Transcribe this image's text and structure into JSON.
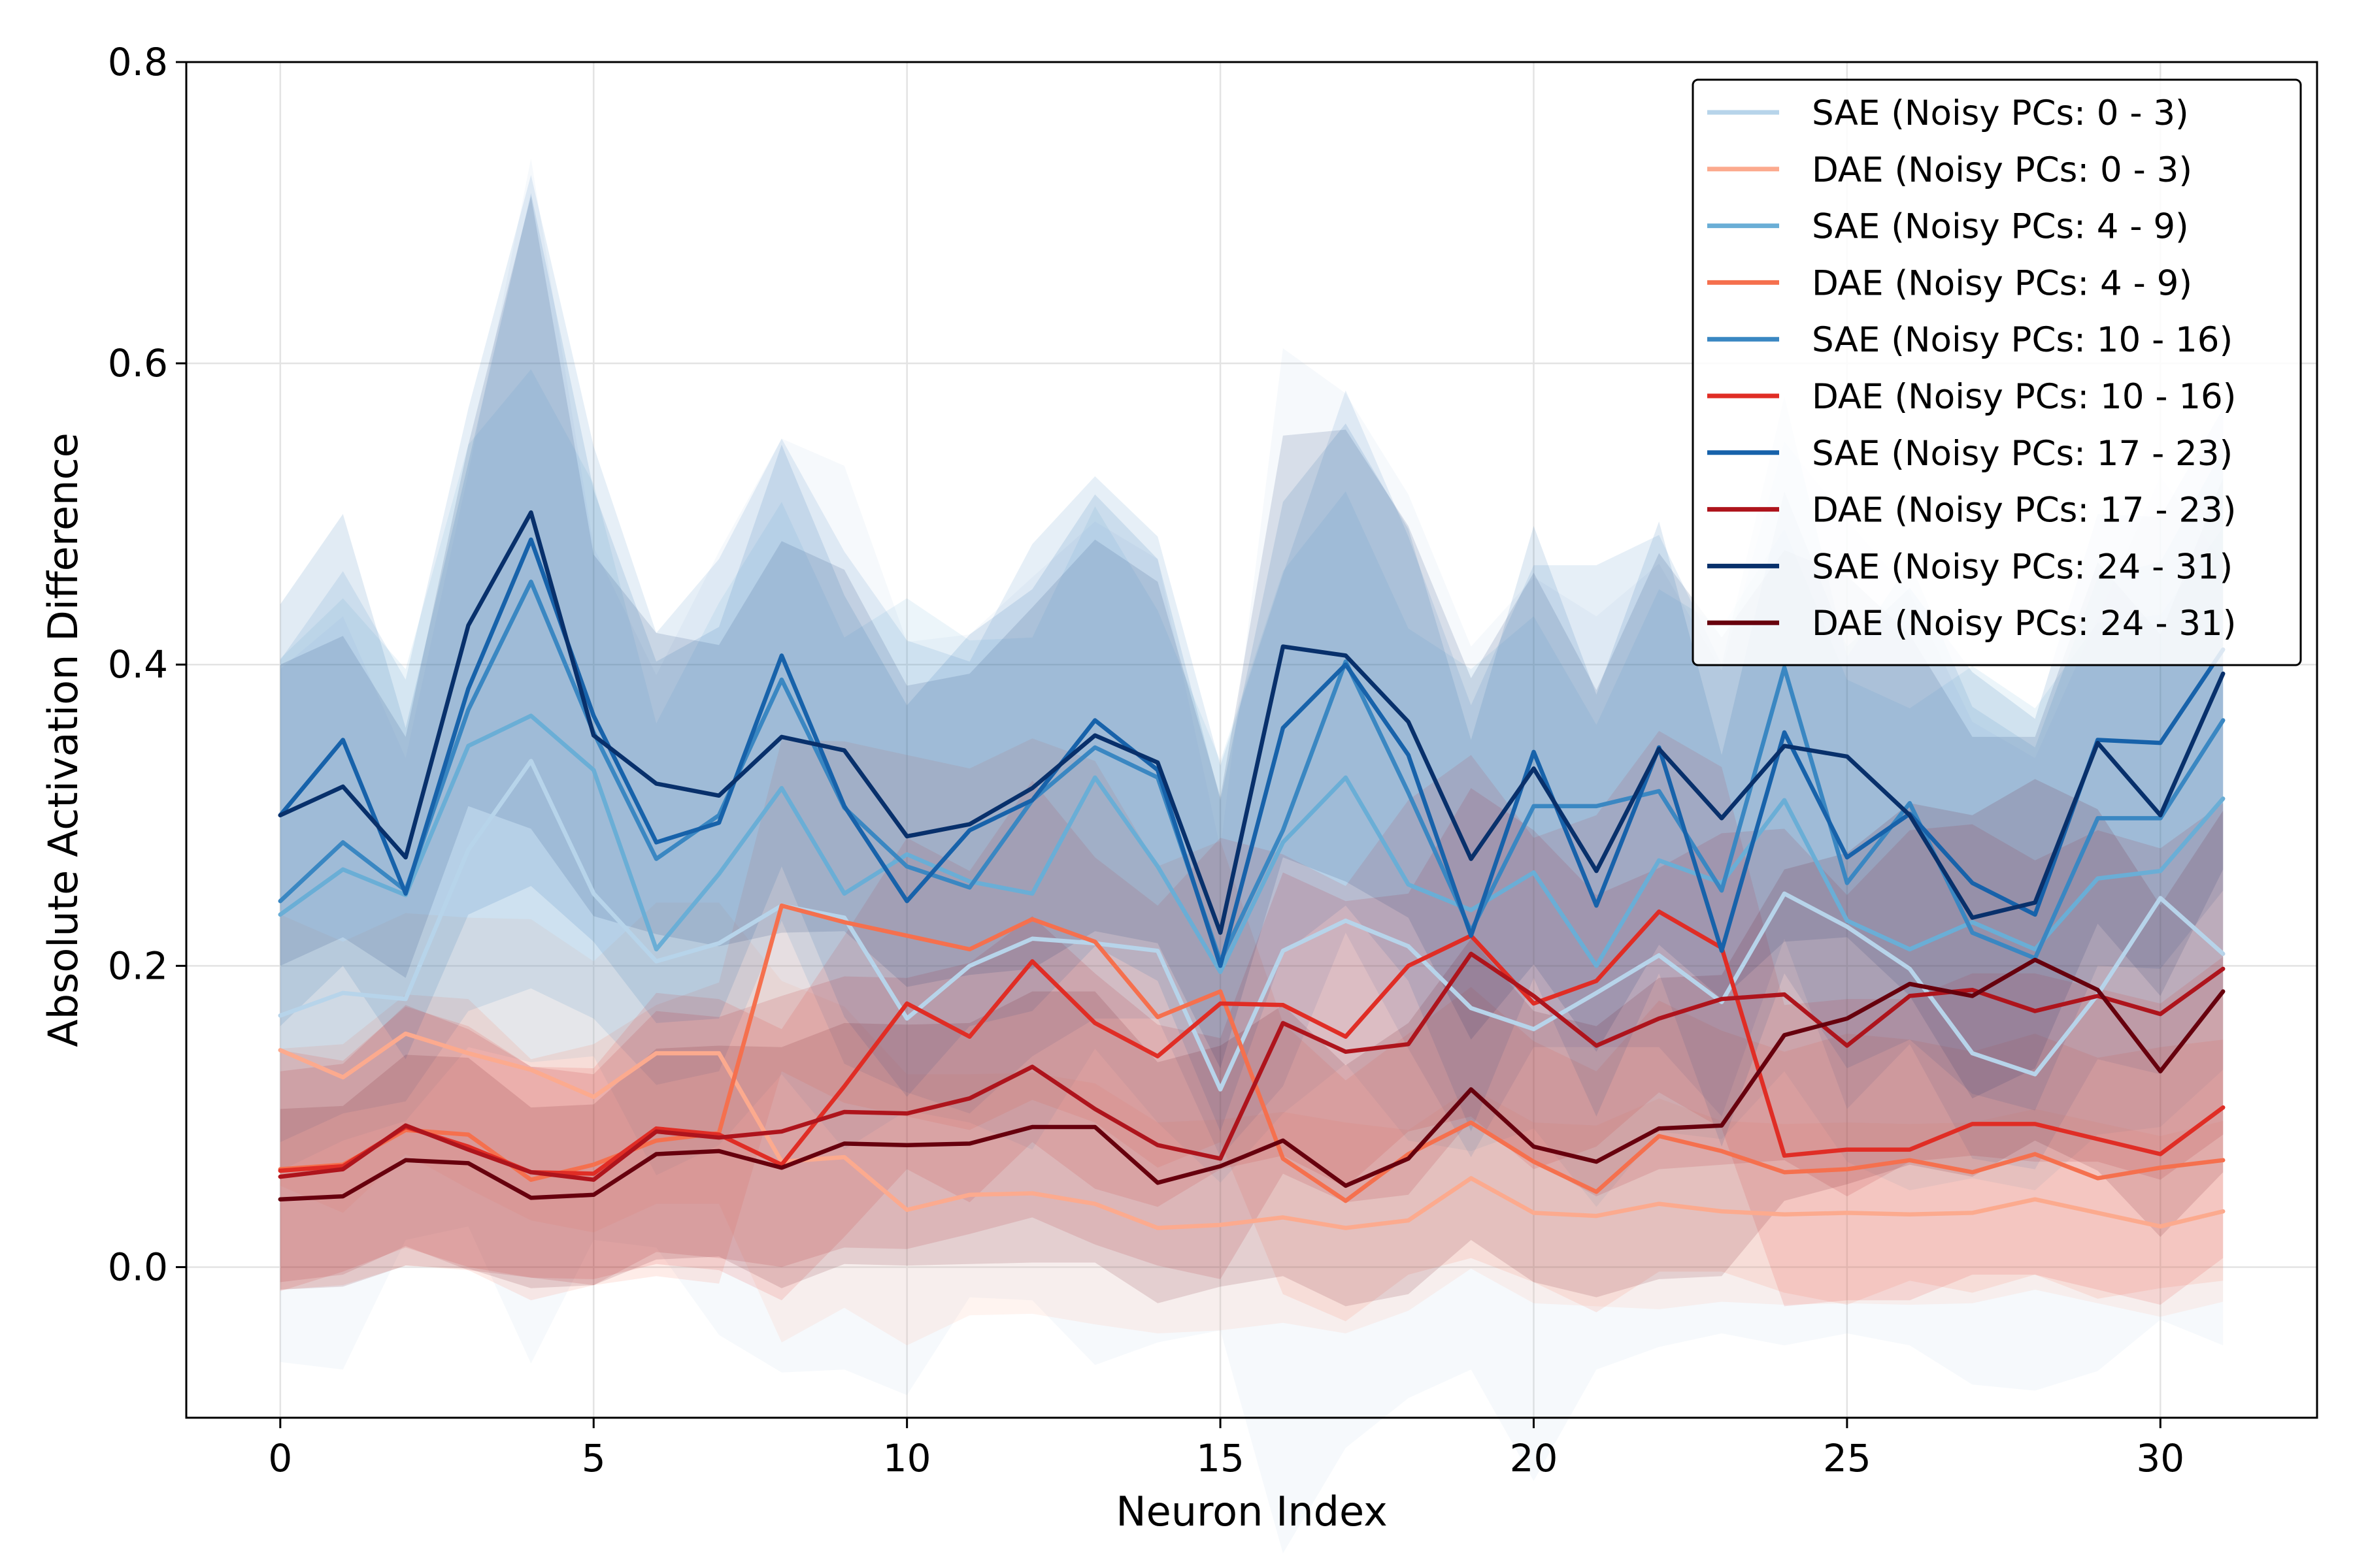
{
  "chart_data": {
    "type": "line",
    "xlabel": "Neuron Index",
    "ylabel": "Absolute Activation Difference",
    "xlim": [
      -1.5,
      32.5
    ],
    "ylim": [
      -0.1,
      0.8
    ],
    "xticks": [
      0,
      5,
      10,
      15,
      20,
      25,
      30
    ],
    "yticks": [
      0.0,
      0.2,
      0.4,
      0.6,
      0.8
    ],
    "ytick_labels": [
      "0.0",
      "0.2",
      "0.4",
      "0.6",
      "0.8"
    ],
    "grid": true,
    "legend_position": "top-right",
    "band_alpha": 0.13,
    "x": [
      0,
      1,
      2,
      3,
      4,
      5,
      6,
      7,
      8,
      9,
      10,
      11,
      12,
      13,
      14,
      15,
      16,
      17,
      18,
      19,
      20,
      21,
      22,
      23,
      24,
      25,
      26,
      27,
      28,
      29,
      30,
      31
    ],
    "series": [
      {
        "name": "SAE (Noisy PCs: 0 - 3)",
        "color": "#b7d4ea",
        "values": [
          0.167,
          0.182,
          0.178,
          0.277,
          0.336,
          0.248,
          0.203,
          0.215,
          0.24,
          0.232,
          0.165,
          0.2,
          0.218,
          0.215,
          0.21,
          0.118,
          0.21,
          0.23,
          0.213,
          0.172,
          0.158,
          0.182,
          0.207,
          0.176,
          0.248,
          0.226,
          0.198,
          0.142,
          0.128,
          0.181,
          0.245,
          0.208
        ],
        "spread": [
          0.23,
          0.25,
          0.16,
          0.25,
          0.4,
          0.23,
          0.19,
          0.26,
          0.31,
          0.3,
          0.25,
          0.22,
          0.24,
          0.28,
          0.26,
          0.16,
          0.4,
          0.35,
          0.3,
          0.24,
          0.3,
          0.25,
          0.26,
          0.22,
          0.3,
          0.27,
          0.25,
          0.22,
          0.21,
          0.25,
          0.28,
          0.26
        ]
      },
      {
        "name": "DAE (Noisy PCs: 0 - 3)",
        "color": "#fcaa8e",
        "values": [
          0.144,
          0.126,
          0.155,
          0.142,
          0.131,
          0.113,
          0.142,
          0.142,
          0.07,
          0.073,
          0.038,
          0.048,
          0.049,
          0.042,
          0.026,
          0.028,
          0.033,
          0.026,
          0.031,
          0.059,
          0.036,
          0.034,
          0.042,
          0.037,
          0.035,
          0.036,
          0.035,
          0.036,
          0.045,
          0.036,
          0.027,
          0.037
        ],
        "spread": [
          0.09,
          0.09,
          0.08,
          0.09,
          0.1,
          0.09,
          0.1,
          0.1,
          0.12,
          0.1,
          0.09,
          0.08,
          0.08,
          0.08,
          0.07,
          0.07,
          0.07,
          0.07,
          0.06,
          0.06,
          0.06,
          0.06,
          0.07,
          0.06,
          0.06,
          0.06,
          0.06,
          0.06,
          0.06,
          0.06,
          0.06,
          0.06
        ]
      },
      {
        "name": "SAE (Noisy PCs: 4 - 9)",
        "color": "#6aaed6",
        "values": [
          0.234,
          0.264,
          0.247,
          0.346,
          0.366,
          0.33,
          0.211,
          0.261,
          0.318,
          0.248,
          0.274,
          0.256,
          0.248,
          0.325,
          0.266,
          0.196,
          0.282,
          0.325,
          0.254,
          0.237,
          0.262,
          0.2,
          0.27,
          0.255,
          0.31,
          0.23,
          0.211,
          0.229,
          0.211,
          0.258,
          0.263,
          0.311
        ],
        "spread": [
          0.17,
          0.18,
          0.15,
          0.2,
          0.23,
          0.19,
          0.15,
          0.18,
          0.19,
          0.17,
          0.17,
          0.16,
          0.17,
          0.18,
          0.17,
          0.14,
          0.18,
          0.19,
          0.17,
          0.16,
          0.17,
          0.16,
          0.18,
          0.17,
          0.18,
          0.16,
          0.16,
          0.17,
          0.16,
          0.17,
          0.17,
          0.18
        ]
      },
      {
        "name": "DAE (Noisy PCs: 4 - 9)",
        "color": "#f5704e",
        "values": [
          0.065,
          0.068,
          0.091,
          0.088,
          0.058,
          0.068,
          0.084,
          0.089,
          0.24,
          0.229,
          0.22,
          0.211,
          0.231,
          0.216,
          0.166,
          0.183,
          0.072,
          0.044,
          0.075,
          0.096,
          0.07,
          0.05,
          0.087,
          0.077,
          0.063,
          0.065,
          0.071,
          0.063,
          0.075,
          0.059,
          0.066,
          0.071
        ],
        "spread": [
          0.08,
          0.08,
          0.09,
          0.09,
          0.08,
          0.08,
          0.09,
          0.1,
          0.11,
          0.12,
          0.12,
          0.12,
          0.12,
          0.12,
          0.1,
          0.1,
          0.09,
          0.08,
          0.08,
          0.09,
          0.08,
          0.08,
          0.09,
          0.08,
          0.08,
          0.09,
          0.08,
          0.08,
          0.08,
          0.08,
          0.08,
          0.08
        ]
      },
      {
        "name": "SAE (Noisy PCs: 10 - 16)",
        "color": "#3a87c2",
        "values": [
          0.243,
          0.282,
          0.25,
          0.37,
          0.455,
          0.355,
          0.271,
          0.3,
          0.39,
          0.305,
          0.266,
          0.252,
          0.31,
          0.345,
          0.325,
          0.203,
          0.29,
          0.402,
          0.315,
          0.223,
          0.306,
          0.306,
          0.316,
          0.25,
          0.398,
          0.255,
          0.308,
          0.222,
          0.205,
          0.298,
          0.298,
          0.363
        ],
        "spread": [
          0.16,
          0.18,
          0.14,
          0.2,
          0.27,
          0.19,
          0.15,
          0.17,
          0.16,
          0.17,
          0.15,
          0.15,
          0.17,
          0.18,
          0.16,
          0.13,
          0.17,
          0.18,
          0.17,
          0.15,
          0.16,
          0.16,
          0.17,
          0.15,
          0.18,
          0.15,
          0.16,
          0.15,
          0.14,
          0.16,
          0.17,
          0.18
        ]
      },
      {
        "name": "DAE (Noisy PCs: 10 - 16)",
        "color": "#e02d25",
        "values": [
          0.064,
          0.067,
          0.093,
          0.08,
          0.063,
          0.062,
          0.092,
          0.088,
          0.068,
          0.12,
          0.175,
          0.153,
          0.203,
          0.162,
          0.14,
          0.175,
          0.174,
          0.153,
          0.2,
          0.22,
          0.175,
          0.19,
          0.236,
          0.212,
          0.074,
          0.078,
          0.078,
          0.095,
          0.095,
          0.085,
          0.075,
          0.106
        ],
        "spread": [
          0.08,
          0.07,
          0.08,
          0.08,
          0.07,
          0.07,
          0.09,
          0.09,
          0.09,
          0.1,
          0.11,
          0.11,
          0.12,
          0.11,
          0.1,
          0.11,
          0.1,
          0.1,
          0.11,
          0.12,
          0.11,
          0.11,
          0.12,
          0.12,
          0.1,
          0.1,
          0.1,
          0.1,
          0.1,
          0.1,
          0.1,
          0.1
        ]
      },
      {
        "name": "SAE (Noisy PCs: 17 - 23)",
        "color": "#1762aa",
        "values": [
          0.3,
          0.35,
          0.248,
          0.384,
          0.483,
          0.366,
          0.282,
          0.295,
          0.406,
          0.306,
          0.243,
          0.29,
          0.31,
          0.363,
          0.33,
          0.2,
          0.358,
          0.4,
          0.34,
          0.22,
          0.342,
          0.24,
          0.345,
          0.21,
          0.355,
          0.272,
          0.301,
          0.255,
          0.234,
          0.35,
          0.348,
          0.41
        ],
        "spread": [
          0.14,
          0.15,
          0.11,
          0.15,
          0.23,
          0.15,
          0.12,
          0.13,
          0.14,
          0.14,
          0.13,
          0.13,
          0.14,
          0.15,
          0.14,
          0.11,
          0.15,
          0.16,
          0.15,
          0.13,
          0.15,
          0.14,
          0.15,
          0.13,
          0.16,
          0.14,
          0.15,
          0.14,
          0.13,
          0.15,
          0.15,
          0.16
        ]
      },
      {
        "name": "DAE (Noisy PCs: 17 - 23)",
        "color": "#ae141c",
        "values": [
          0.06,
          0.065,
          0.094,
          0.078,
          0.063,
          0.058,
          0.09,
          0.086,
          0.09,
          0.103,
          0.102,
          0.112,
          0.133,
          0.105,
          0.081,
          0.072,
          0.162,
          0.143,
          0.148,
          0.208,
          0.18,
          0.147,
          0.165,
          0.178,
          0.181,
          0.147,
          0.18,
          0.184,
          0.17,
          0.18,
          0.168,
          0.198
        ],
        "spread": [
          0.07,
          0.07,
          0.08,
          0.08,
          0.07,
          0.07,
          0.08,
          0.08,
          0.09,
          0.09,
          0.09,
          0.09,
          0.1,
          0.09,
          0.08,
          0.08,
          0.1,
          0.1,
          0.1,
          0.11,
          0.11,
          0.1,
          0.1,
          0.11,
          0.11,
          0.1,
          0.11,
          0.11,
          0.1,
          0.11,
          0.11,
          0.11
        ]
      },
      {
        "name": "SAE (Noisy PCs: 24 - 31)",
        "color": "#08306b",
        "values": [
          0.3,
          0.319,
          0.272,
          0.426,
          0.501,
          0.353,
          0.321,
          0.313,
          0.352,
          0.343,
          0.286,
          0.294,
          0.318,
          0.353,
          0.335,
          0.222,
          0.412,
          0.406,
          0.362,
          0.271,
          0.331,
          0.263,
          0.344,
          0.298,
          0.346,
          0.339,
          0.3,
          0.232,
          0.242,
          0.348,
          0.3,
          0.394
        ],
        "spread": [
          0.1,
          0.1,
          0.08,
          0.12,
          0.21,
          0.12,
          0.1,
          0.1,
          0.13,
          0.12,
          0.1,
          0.1,
          0.12,
          0.13,
          0.12,
          0.09,
          0.14,
          0.15,
          0.13,
          0.12,
          0.13,
          0.12,
          0.13,
          0.12,
          0.13,
          0.12,
          0.12,
          0.12,
          0.11,
          0.12,
          0.12,
          0.13
        ]
      },
      {
        "name": "DAE (Noisy PCs: 24 - 31)",
        "color": "#67000d",
        "values": [
          0.045,
          0.047,
          0.071,
          0.069,
          0.046,
          0.048,
          0.075,
          0.077,
          0.066,
          0.082,
          0.081,
          0.082,
          0.093,
          0.093,
          0.056,
          0.067,
          0.084,
          0.054,
          0.072,
          0.118,
          0.08,
          0.07,
          0.092,
          0.094,
          0.154,
          0.165,
          0.188,
          0.18,
          0.204,
          0.184,
          0.13,
          0.183
        ],
        "spread": [
          0.06,
          0.06,
          0.07,
          0.07,
          0.06,
          0.06,
          0.07,
          0.07,
          0.08,
          0.08,
          0.08,
          0.08,
          0.09,
          0.09,
          0.08,
          0.08,
          0.09,
          0.08,
          0.09,
          0.1,
          0.09,
          0.09,
          0.1,
          0.1,
          0.11,
          0.11,
          0.12,
          0.12,
          0.12,
          0.12,
          0.11,
          0.12
        ]
      }
    ]
  }
}
